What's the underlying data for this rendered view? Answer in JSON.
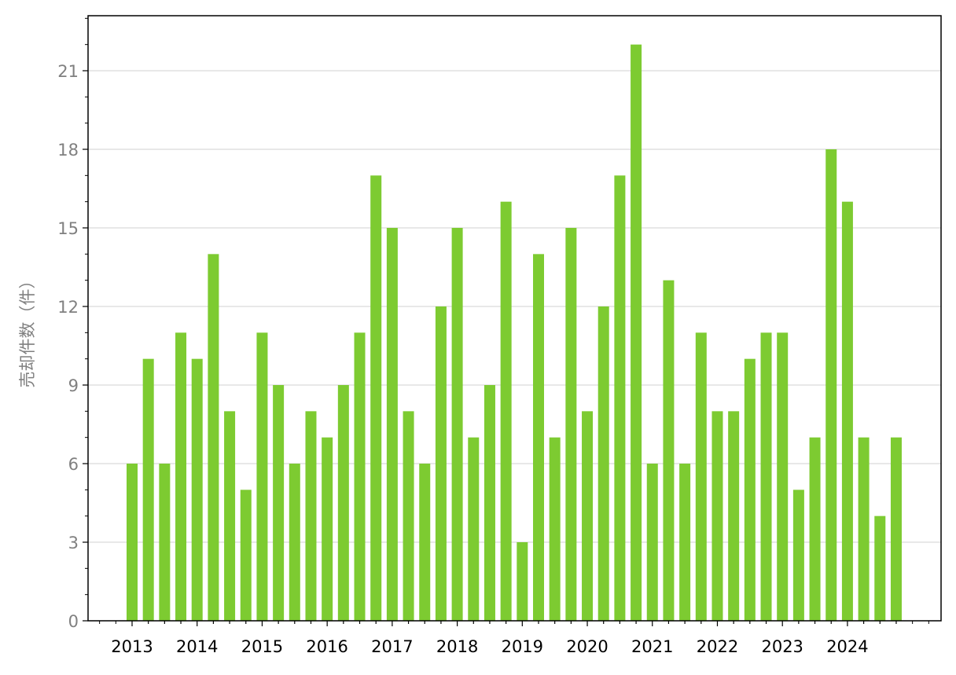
{
  "chart_data": {
    "type": "bar",
    "y_label": "売却件数（件）",
    "categories": [
      "2013",
      null,
      null,
      null,
      "2014",
      null,
      null,
      null,
      "2015",
      null,
      null,
      null,
      "2016",
      null,
      null,
      null,
      "2017",
      null,
      null,
      null,
      "2018",
      null,
      null,
      null,
      "2019",
      null,
      null,
      null,
      "2020",
      null,
      null,
      null,
      "2021",
      null,
      null,
      null,
      "2022",
      null,
      null,
      null,
      "2023",
      null,
      null,
      null,
      "2024",
      null,
      null,
      null
    ],
    "values": [
      6,
      10,
      6,
      11,
      10,
      14,
      8,
      5,
      11,
      9,
      6,
      8,
      7,
      9,
      11,
      17,
      15,
      8,
      6,
      12,
      15,
      7,
      9,
      16,
      3,
      14,
      7,
      15,
      8,
      12,
      17,
      22,
      6,
      13,
      6,
      11,
      8,
      8,
      10,
      11,
      11,
      5,
      7,
      18,
      16,
      7,
      4,
      7
    ],
    "color": "#7dcb31",
    "ylim": [
      0,
      23.1
    ],
    "yticks": [
      0,
      3,
      6,
      9,
      12,
      15,
      18,
      21
    ],
    "grid": true
  }
}
